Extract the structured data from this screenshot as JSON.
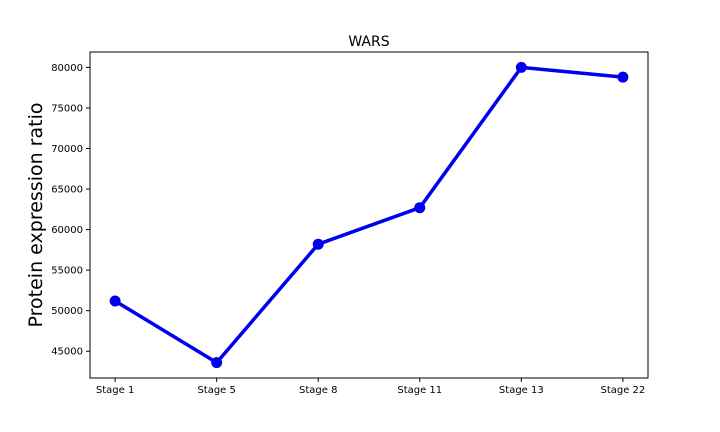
{
  "chart_data": {
    "type": "line",
    "title": "WARS",
    "xlabel": "",
    "ylabel": "Protein expression ratio",
    "categories": [
      "Stage 1",
      "Stage 5",
      "Stage 8",
      "Stage 11",
      "Stage 13",
      "Stage 22"
    ],
    "series": [
      {
        "values": [
          51200,
          43600,
          58200,
          62700,
          80000,
          78800
        ]
      }
    ],
    "y_ticks": [
      45000,
      50000,
      55000,
      60000,
      65000,
      70000,
      75000,
      80000
    ],
    "ylim": [
      41700,
      81900
    ],
    "grid": false,
    "legend": "none",
    "line_color": "#0000ee"
  }
}
